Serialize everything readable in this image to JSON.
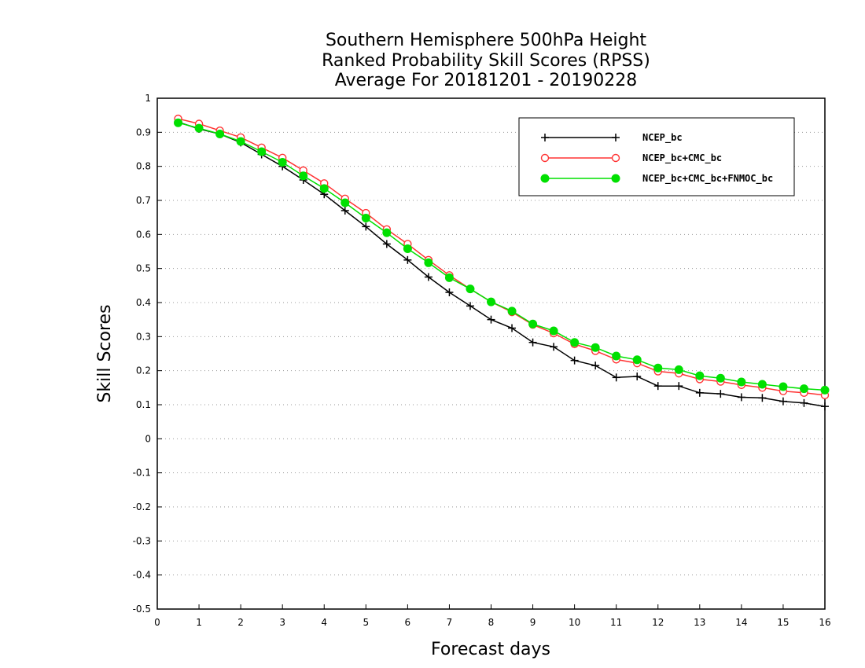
{
  "chart_data": {
    "type": "line",
    "title": [
      "Southern Hemisphere 500hPa Height",
      "Ranked Probability Skill Scores (RPSS)",
      "Average For 20181201 - 20190228"
    ],
    "xlabel": "Forecast days",
    "ylabel": "Skill Scores",
    "xlim": [
      0,
      16
    ],
    "ylim": [
      -0.5,
      1
    ],
    "xticks": [
      0,
      1,
      2,
      3,
      4,
      5,
      6,
      7,
      8,
      9,
      10,
      11,
      12,
      13,
      14,
      15,
      16
    ],
    "yticks": [
      -0.5,
      -0.4,
      -0.3,
      -0.2,
      -0.1,
      0,
      0.1,
      0.2,
      0.3,
      0.4,
      0.5,
      0.6,
      0.7,
      0.8,
      0.9,
      1
    ],
    "ytick_labels": [
      "-0.5",
      "-0.4",
      "-0.3",
      "-0.2",
      "-0.1",
      "0",
      "0.1",
      "0.2",
      "0.3",
      "0.4",
      "0.5",
      "0.6",
      "0.7",
      "0.8",
      "0.9",
      "1"
    ],
    "grid": "horizontal dotted",
    "legend_position": "top-right",
    "x": [
      0.5,
      1,
      1.5,
      2,
      2.5,
      3,
      3.5,
      4,
      4.5,
      5,
      5.5,
      6,
      6.5,
      7,
      7.5,
      8,
      8.5,
      9,
      9.5,
      10,
      10.5,
      11,
      11.5,
      12,
      12.5,
      13,
      13.5,
      14,
      14.5,
      15,
      15.5,
      16
    ],
    "series": [
      {
        "name": "NCEP_bc",
        "color": "#000000",
        "marker": "plus",
        "values": [
          0.93,
          0.91,
          0.895,
          0.87,
          0.835,
          0.8,
          0.76,
          0.718,
          0.67,
          0.623,
          0.572,
          0.525,
          0.475,
          0.43,
          0.39,
          0.35,
          0.325,
          0.283,
          0.27,
          0.23,
          0.215,
          0.18,
          0.183,
          0.155,
          0.155,
          0.135,
          0.132,
          0.122,
          0.12,
          0.11,
          0.105,
          0.095
        ]
      },
      {
        "name": "NCEP_bc+CMC_bc",
        "color": "#ff3333",
        "marker": "open-circle",
        "values": [
          0.94,
          0.925,
          0.905,
          0.885,
          0.855,
          0.825,
          0.788,
          0.75,
          0.705,
          0.663,
          0.615,
          0.572,
          0.525,
          0.48,
          0.44,
          0.402,
          0.372,
          0.335,
          0.31,
          0.278,
          0.258,
          0.233,
          0.222,
          0.198,
          0.192,
          0.175,
          0.168,
          0.158,
          0.15,
          0.14,
          0.135,
          0.128
        ]
      },
      {
        "name": "NCEP_bc+CMC_bc+FNMOC_bc",
        "color": "#00e000",
        "marker": "filled-circle",
        "values": [
          0.928,
          0.912,
          0.895,
          0.873,
          0.843,
          0.812,
          0.772,
          0.735,
          0.693,
          0.648,
          0.605,
          0.558,
          0.517,
          0.473,
          0.44,
          0.402,
          0.375,
          0.337,
          0.317,
          0.283,
          0.268,
          0.243,
          0.232,
          0.208,
          0.203,
          0.185,
          0.178,
          0.167,
          0.16,
          0.153,
          0.147,
          0.143
        ]
      }
    ]
  }
}
